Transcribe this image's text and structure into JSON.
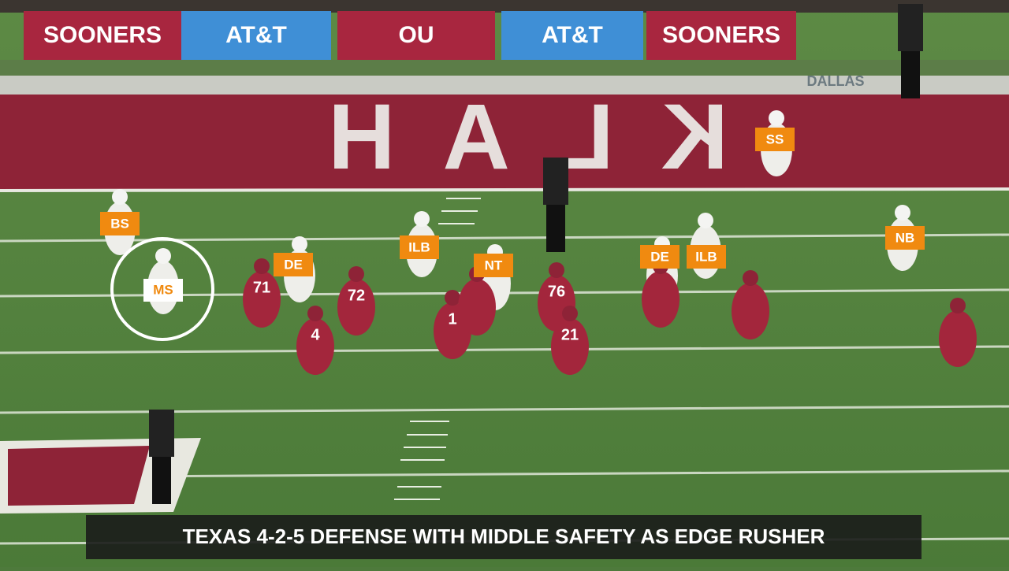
{
  "banners": [
    "SOONERS",
    "AT&T",
    "OU",
    "AT&T",
    "SOONERS"
  ],
  "sideline_text": "DALLAS",
  "end_zone_text": "KLAH",
  "jersey_numbers": [
    "71",
    "72",
    "4",
    "1",
    "76",
    "21"
  ],
  "labels": [
    "SS",
    "BS",
    "ILB",
    "DE",
    "NT",
    "DE",
    "ILB",
    "NB"
  ],
  "highlight_label": "MS",
  "caption": "TEXAS 4-2-5 DEFENSE WITH MIDDLE SAFETY AS EDGE RUSHER"
}
